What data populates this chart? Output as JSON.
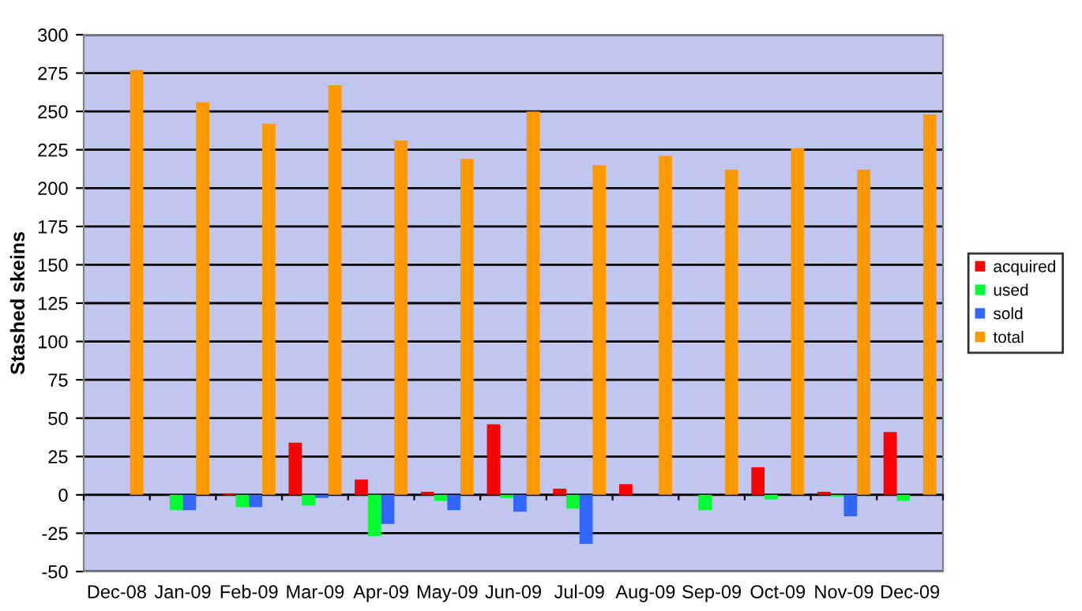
{
  "chart_data": {
    "type": "bar",
    "ylabel": "Stashed skeins",
    "categories": [
      "Dec-08",
      "Jan-09",
      "Feb-09",
      "Mar-09",
      "Apr-09",
      "May-09",
      "Jun-09",
      "Jul-09",
      "Aug-09",
      "Sep-09",
      "Oct-09",
      "Nov-09",
      "Dec-09"
    ],
    "series": [
      {
        "name": "acquired",
        "color": "#ff0000",
        "values": [
          0,
          0,
          1,
          34,
          10,
          2,
          46,
          4,
          7,
          0,
          18,
          2,
          41
        ]
      },
      {
        "name": "used",
        "color": "#00ff33",
        "values": [
          0,
          -10,
          -8,
          -7,
          -27,
          -4,
          -2,
          -9,
          0,
          -10,
          -3,
          -1,
          -4
        ]
      },
      {
        "name": "sold",
        "color": "#3366ff",
        "values": [
          0,
          -10,
          -8,
          -2,
          -19,
          -10,
          -11,
          -32,
          0,
          0,
          0,
          -14,
          0
        ]
      },
      {
        "name": "total",
        "color": "#ff9900",
        "values": [
          277,
          256,
          242,
          267,
          231,
          219,
          250,
          215,
          221,
          212,
          226,
          212,
          248
        ]
      }
    ],
    "ylim": [
      -50,
      300
    ],
    "yticks": [
      -50,
      -25,
      0,
      25,
      50,
      75,
      100,
      125,
      150,
      175,
      200,
      225,
      250,
      275,
      300
    ],
    "grid": "y",
    "legend": "right"
  }
}
